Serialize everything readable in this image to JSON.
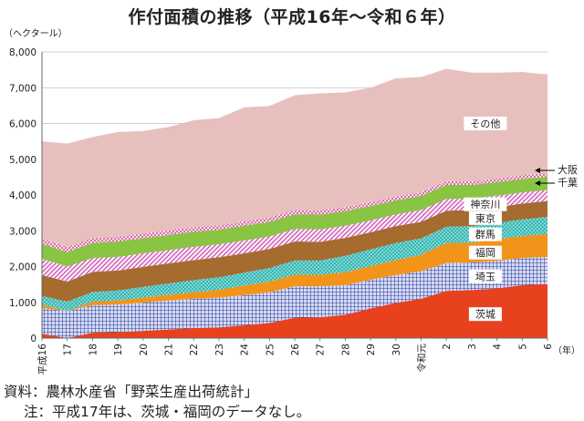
{
  "chart_data": {
    "type": "area",
    "stacked": true,
    "title": "作付面積の推移（平成16年〜令和６年）",
    "ylabel": "（ヘクタール）",
    "xlabel": "（年）",
    "ylim": [
      0,
      8000
    ],
    "yticks": [
      0,
      1000,
      2000,
      3000,
      4000,
      5000,
      6000,
      7000,
      8000
    ],
    "ytick_labels": [
      "0",
      "1,000",
      "2,000",
      "3,000",
      "4,000",
      "5,000",
      "6,000",
      "7,000",
      "8,000"
    ],
    "categories": [
      "平成16",
      "17",
      "18",
      "19",
      "20",
      "21",
      "22",
      "23",
      "24",
      "25",
      "26",
      "27",
      "28",
      "29",
      "30",
      "令和元",
      "2",
      "3",
      "4",
      "5",
      "6"
    ],
    "grid": true,
    "series": [
      {
        "name": "茨城",
        "color": "#e8411e",
        "pattern": "solid",
        "values": [
          120,
          0,
          150,
          170,
          200,
          240,
          280,
          300,
          360,
          420,
          570,
          580,
          650,
          830,
          980,
          1100,
          1320,
          1340,
          1390,
          1480,
          1510
        ]
      },
      {
        "name": "埼玉",
        "color": "#2c3f99",
        "pattern": "grid",
        "values": [
          720,
          760,
          770,
          770,
          790,
          810,
          820,
          830,
          840,
          860,
          880,
          870,
          830,
          800,
          780,
          770,
          780,
          770,
          770,
          760,
          760
        ]
      },
      {
        "name": "福岡",
        "color": "#f29419",
        "pattern": "solid",
        "values": [
          100,
          0,
          100,
          110,
          140,
          160,
          180,
          220,
          270,
          300,
          320,
          320,
          360,
          380,
          420,
          460,
          560,
          560,
          600,
          610,
          640
        ]
      },
      {
        "name": "群馬",
        "color": "#33b7b3",
        "pattern": "dots",
        "values": [
          240,
          260,
          270,
          280,
          300,
          320,
          340,
          350,
          360,
          380,
          400,
          400,
          460,
          470,
          480,
          460,
          450,
          460,
          460,
          470,
          480
        ]
      },
      {
        "name": "東京",
        "color": "#a56b2f",
        "pattern": "solid",
        "values": [
          580,
          560,
          560,
          560,
          560,
          560,
          560,
          560,
          540,
          530,
          530,
          520,
          500,
          480,
          470,
          460,
          450,
          450,
          440,
          440,
          440
        ]
      },
      {
        "name": "神奈川",
        "color": "#c23aa8",
        "pattern": "diag",
        "values": [
          460,
          420,
          390,
          380,
          380,
          370,
          370,
          360,
          360,
          350,
          350,
          350,
          340,
          330,
          330,
          330,
          330,
          320,
          320,
          310,
          310
        ]
      },
      {
        "name": "千葉",
        "color": "#8ac443",
        "pattern": "solid",
        "values": [
          420,
          400,
          420,
          430,
          420,
          420,
          420,
          410,
          410,
          410,
          410,
          410,
          410,
          400,
          390,
          390,
          390,
          380,
          380,
          380,
          370
        ]
      },
      {
        "name": "大阪",
        "color": "#d55a9b",
        "pattern": "cross",
        "values": [
          150,
          140,
          140,
          130,
          130,
          130,
          130,
          120,
          120,
          120,
          120,
          120,
          110,
          110,
          110,
          110,
          110,
          100,
          100,
          100,
          100
        ]
      },
      {
        "name": "その他",
        "color": "#e7c0bd",
        "pattern": "solid",
        "values": [
          2710,
          2900,
          2820,
          2930,
          2870,
          2890,
          2990,
          3000,
          3190,
          3120,
          3210,
          3270,
          3210,
          3200,
          3300,
          3220,
          3140,
          3040,
          2960,
          2890,
          2760
        ]
      }
    ],
    "annotations": {
      "osaka": "大阪",
      "chiba": "千葉"
    }
  },
  "source": "資料：農林水産省「野菜生産出荷統計」",
  "note": "注：平成17年は、茨城・福岡のデータなし。"
}
